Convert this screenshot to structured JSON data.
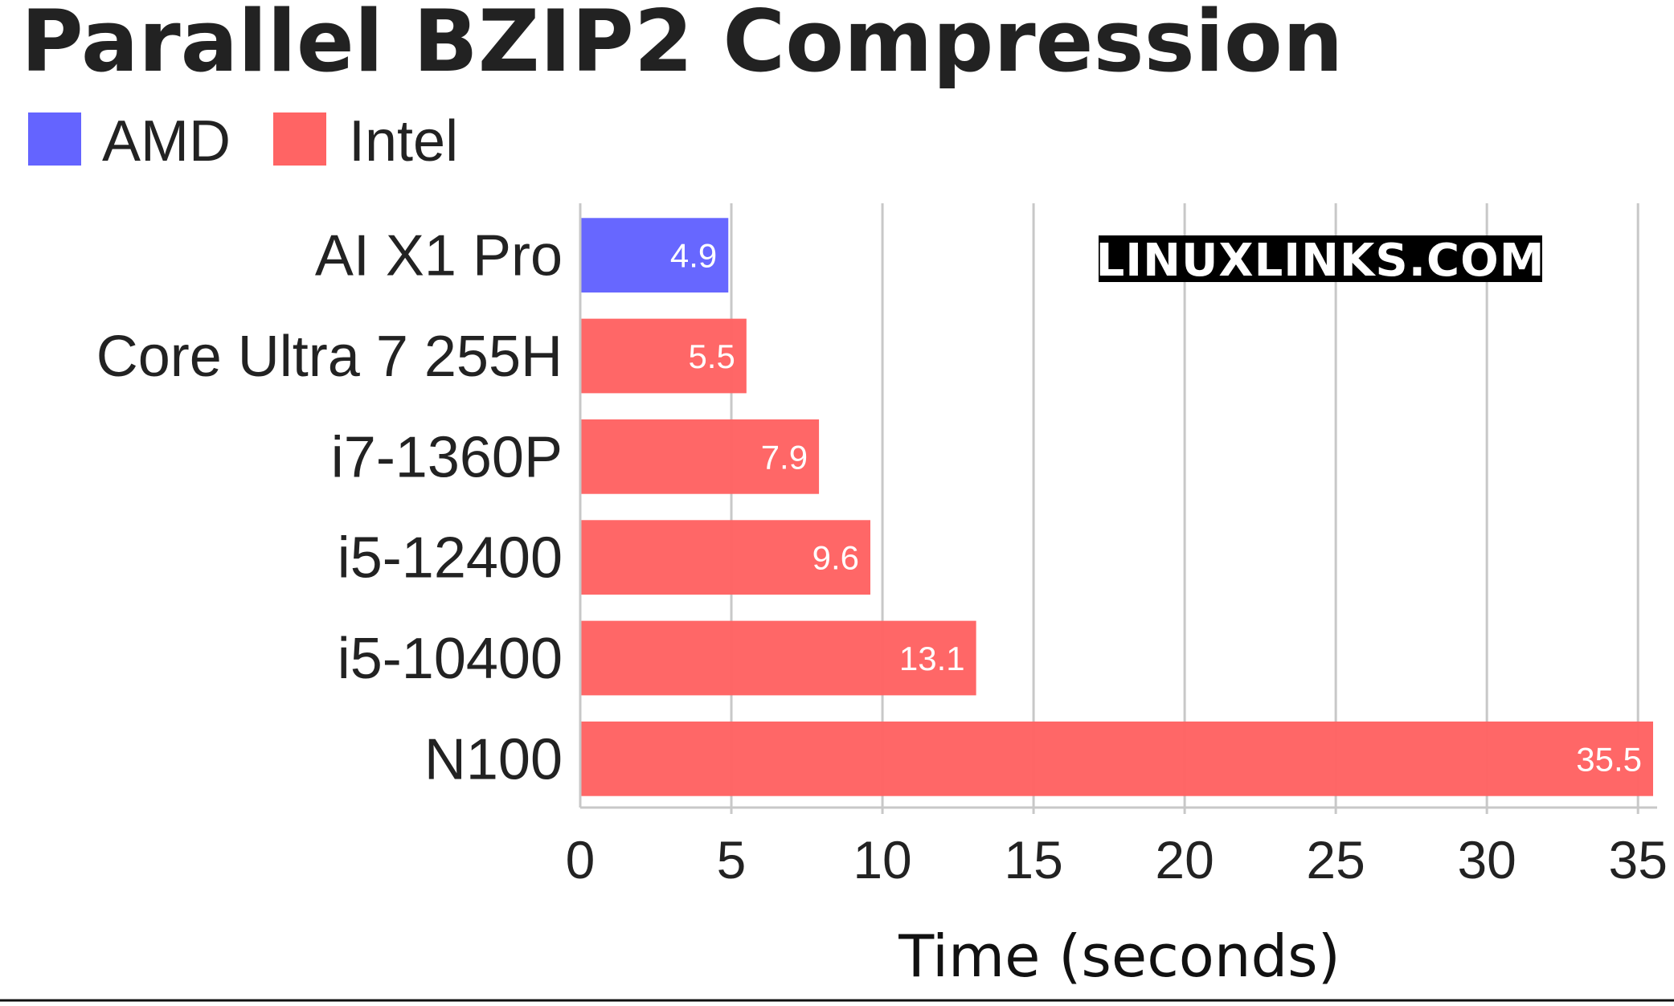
{
  "chart_data": {
    "type": "bar",
    "orientation": "horizontal",
    "title": "Parallel BZIP2 Compression",
    "xlabel": "Time (seconds)",
    "ylabel": "",
    "xlim": [
      0,
      35.5
    ],
    "ticks": [
      "0",
      "5",
      "10",
      "15",
      "20",
      "25",
      "30",
      "35"
    ],
    "tick_values": [
      0,
      5,
      10,
      15,
      20,
      25,
      30,
      35
    ],
    "grid": "vertical",
    "legend_position": "top-left",
    "legend": [
      {
        "label": "AMD",
        "color": "#6464ff"
      },
      {
        "label": "Intel",
        "color": "#ff6464"
      }
    ],
    "categories": [
      "AI X1 Pro",
      "Core Ultra 7 255H",
      "i7-1360P",
      "i5-12400",
      "i5-10400",
      "N100"
    ],
    "values": [
      4.9,
      5.5,
      7.9,
      9.6,
      13.1,
      35.5
    ],
    "value_labels": [
      "4.9",
      "5.5",
      "7.9",
      "9.6",
      "13.1",
      "35.5"
    ],
    "bar_groups": [
      "AMD",
      "Intel",
      "Intel",
      "Intel",
      "Intel",
      "Intel"
    ],
    "watermark": "LINUXLINKS.COM"
  },
  "colors": {
    "AMD": "#6464ff",
    "Intel": "#ff6464",
    "grid": "#c8c8c8",
    "text": "#222222"
  }
}
